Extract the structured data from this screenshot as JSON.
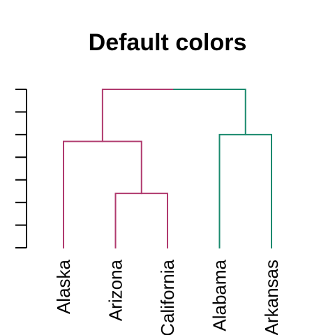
{
  "chart_data": {
    "type": "dendrogram",
    "title": "Default colors",
    "leaves": [
      "Alaska",
      "Arizona",
      "California",
      "Alabama",
      "Arkansas"
    ],
    "axis": {
      "ylim": [
        0,
        7
      ],
      "ticks": [
        0,
        1,
        2,
        3,
        4,
        5,
        6,
        7
      ],
      "tick_labels_shown": false
    },
    "merges": [
      {
        "id": "m1",
        "left": "leaf:1",
        "right": "leaf:2",
        "height": 2.4,
        "color": "#b03a6e"
      },
      {
        "id": "m2",
        "left": "leaf:0",
        "right": "m1",
        "height": 4.7,
        "color": "#b03a6e"
      },
      {
        "id": "m3",
        "left": "leaf:3",
        "right": "leaf:4",
        "height": 5.0,
        "color": "#1a8a6e"
      },
      {
        "id": "m4",
        "left": "m2",
        "right": "m3",
        "height": 7.0,
        "color": "split"
      }
    ],
    "clusters": [
      {
        "name": "cluster-1",
        "leaves": [
          "Alaska",
          "Arizona",
          "California"
        ],
        "color": "#b03a6e"
      },
      {
        "name": "cluster-2",
        "leaves": [
          "Alabama",
          "Arkansas"
        ],
        "color": "#1a8a6e"
      }
    ]
  }
}
